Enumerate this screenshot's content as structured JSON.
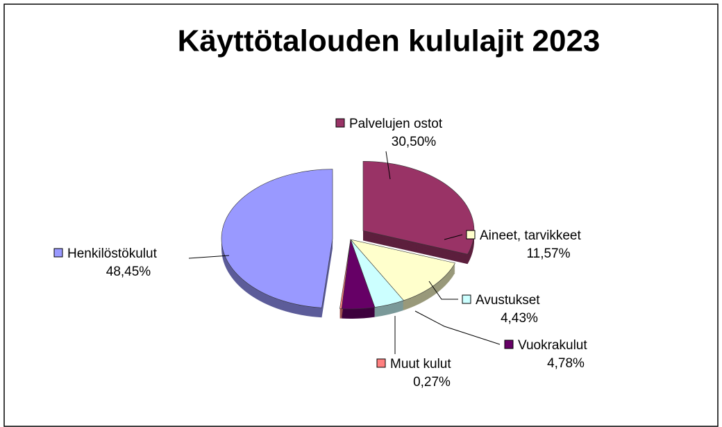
{
  "chart_data": {
    "type": "pie",
    "title": "Käyttötalouden kululajit 2023",
    "categories": [
      "Palvelujen ostot",
      "Aineet, tarvikkeet",
      "Avustukset",
      "Vuokrakulut",
      "Muut kulut",
      "Henkilöstökulut"
    ],
    "values": [
      30.5,
      11.57,
      4.43,
      4.78,
      0.27,
      48.45
    ],
    "value_labels": [
      "30,50%",
      "11,57%",
      "4,43%",
      "4,78%",
      "0,27%",
      "48,45%"
    ],
    "colors": [
      "#993366",
      "#ffffcc",
      "#ccffff",
      "#660066",
      "#ff8080",
      "#9999ff"
    ]
  }
}
